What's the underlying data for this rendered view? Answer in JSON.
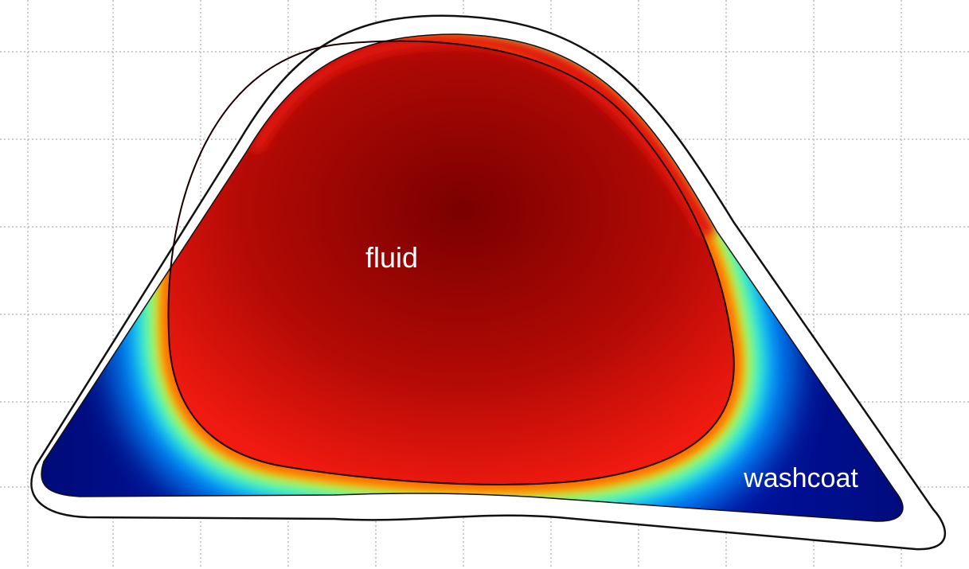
{
  "labels": {
    "fluid": "fluid",
    "washcoat": "washcoat"
  }
}
